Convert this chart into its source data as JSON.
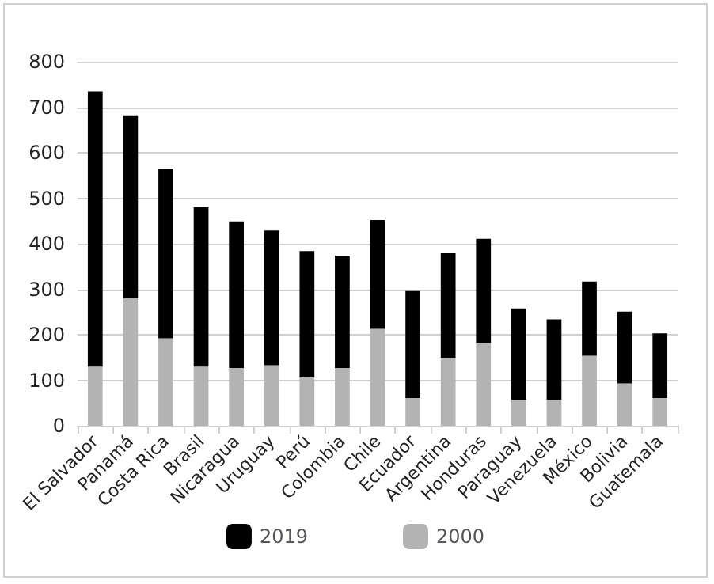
{
  "chart_data": {
    "type": "bar",
    "stacked": true,
    "categories": [
      "El Salvador",
      "Panamá",
      "Costa Rica",
      "Brasil",
      "Nicaragua",
      "Uruguay",
      "Perú",
      "Colombia",
      "Chile",
      "Ecuador",
      "Argentina",
      "Honduras",
      "Paraguay",
      "Venezuela",
      "México",
      "Bolivia",
      "Guatemala"
    ],
    "series": [
      {
        "name": "2000",
        "color": "#b3b3b3",
        "values": [
          130,
          280,
          192,
          130,
          127,
          133,
          106,
          127,
          213,
          61,
          149,
          182,
          57,
          57,
          154,
          93,
          61
        ]
      },
      {
        "name": "2019",
        "color": "#000000",
        "values": [
          605,
          402,
          373,
          350,
          322,
          296,
          278,
          247,
          239,
          235,
          230,
          229,
          201,
          177,
          163,
          158,
          142
        ]
      }
    ],
    "ylim": [
      0,
      800
    ],
    "yticks": [
      0,
      100,
      200,
      300,
      400,
      500,
      600,
      700,
      800
    ],
    "grid": "y",
    "legend": "bottom"
  }
}
